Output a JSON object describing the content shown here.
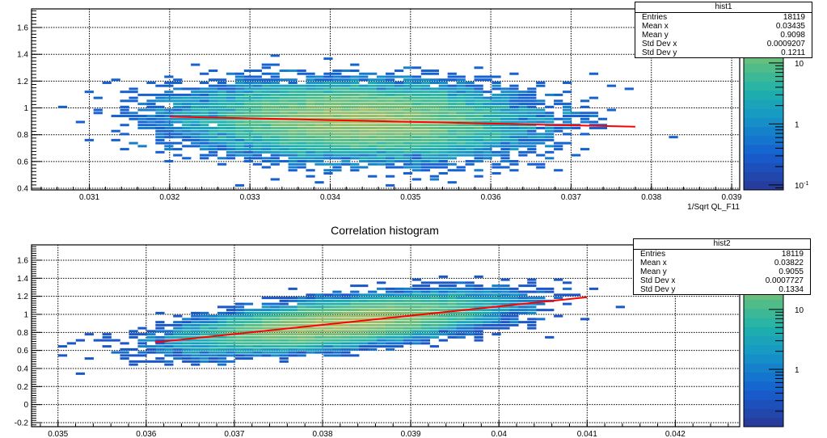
{
  "chart_data": [
    {
      "type": "heatmap",
      "title": "",
      "xlabel": "1/Sqrt QL_F11",
      "ylabel": "",
      "xlim": [
        0.03028,
        0.0391
      ],
      "ylim": [
        0.388,
        1.739
      ],
      "zlim": [
        0.083,
        77
      ],
      "zscale": "log",
      "grid": true,
      "xticks": [
        "0.031",
        "0.032",
        "0.033",
        "0.034",
        "0.035",
        "0.036",
        "0.037",
        "0.038",
        "0.039"
      ],
      "xtick_values": [
        0.031,
        0.032,
        0.033,
        0.034,
        0.035,
        0.036,
        0.037,
        0.038,
        0.039
      ],
      "yticks": [
        "0.4",
        "0.6",
        "0.8",
        "1",
        "1.2",
        "1.4",
        "1.6"
      ],
      "ytick_values": [
        0.4,
        0.6,
        0.8,
        1.0,
        1.2,
        1.4,
        1.6
      ],
      "zticks": [
        {
          "label": "10",
          "value": 10
        },
        {
          "label": "1",
          "value": 1
        },
        {
          "label": "10",
          "sup": "-1",
          "value": 0.1
        }
      ],
      "fit_line": {
        "x": [
          0.032,
          0.0378
        ],
        "y": [
          0.935,
          0.86
        ],
        "color": "#ff0000"
      },
      "stats": {
        "name": "hist1",
        "rows": [
          {
            "label": "Entries",
            "value": "18119"
          },
          {
            "label": "Mean x",
            "value": "0.03435"
          },
          {
            "label": "Mean y",
            "value": "0.9098"
          },
          {
            "label": "Std Dev x",
            "value": "0.0009207"
          },
          {
            "label": "Std Dev y",
            "value": "0.1211"
          }
        ]
      },
      "distribution": {
        "entries": 18119,
        "mean_x": 0.03435,
        "mean_y": 0.9098,
        "std_x": 0.0009207,
        "std_y": 0.1211,
        "corr": -0.08
      }
    },
    {
      "type": "heatmap",
      "title": "Correlation histogram",
      "xlabel": "",
      "ylabel": "",
      "xlim": [
        0.0347,
        0.04273
      ],
      "ylim": [
        -0.245,
        1.77
      ],
      "zlim": [
        0.11,
        120
      ],
      "zscale": "log",
      "grid": true,
      "xticks": [
        "0.035",
        "0.036",
        "0.037",
        "0.038",
        "0.039",
        "0.04",
        "0.041",
        "0.042"
      ],
      "xtick_values": [
        0.035,
        0.036,
        0.037,
        0.038,
        0.039,
        0.04,
        0.041,
        0.042
      ],
      "yticks": [
        "-0.2",
        "0",
        "0.2",
        "0.4",
        "0.6",
        "0.8",
        "1",
        "1.2",
        "1.4",
        "1.6"
      ],
      "ytick_values": [
        -0.2,
        0,
        0.2,
        0.4,
        0.6,
        0.8,
        1.0,
        1.2,
        1.4,
        1.6
      ],
      "zticks": [
        {
          "label": "10",
          "value": 10
        },
        {
          "label": "1",
          "value": 1
        }
      ],
      "fit_line": {
        "x": [
          0.0361,
          0.041
        ],
        "y": [
          0.69,
          1.19
        ],
        "color": "#ff0000"
      },
      "stats": {
        "name": "hist2",
        "rows": [
          {
            "label": "Entries",
            "value": "18119"
          },
          {
            "label": "Mean x",
            "value": "0.03822"
          },
          {
            "label": "Mean y",
            "value": "0.9055"
          },
          {
            "label": "Std Dev x",
            "value": "0.0007727"
          },
          {
            "label": "Std Dev y",
            "value": "0.1334"
          }
        ]
      },
      "distribution": {
        "entries": 18119,
        "mean_x": 0.03822,
        "mean_y": 0.9055,
        "std_x": 0.0007727,
        "std_y": 0.1334,
        "corr": 0.59
      }
    }
  ]
}
